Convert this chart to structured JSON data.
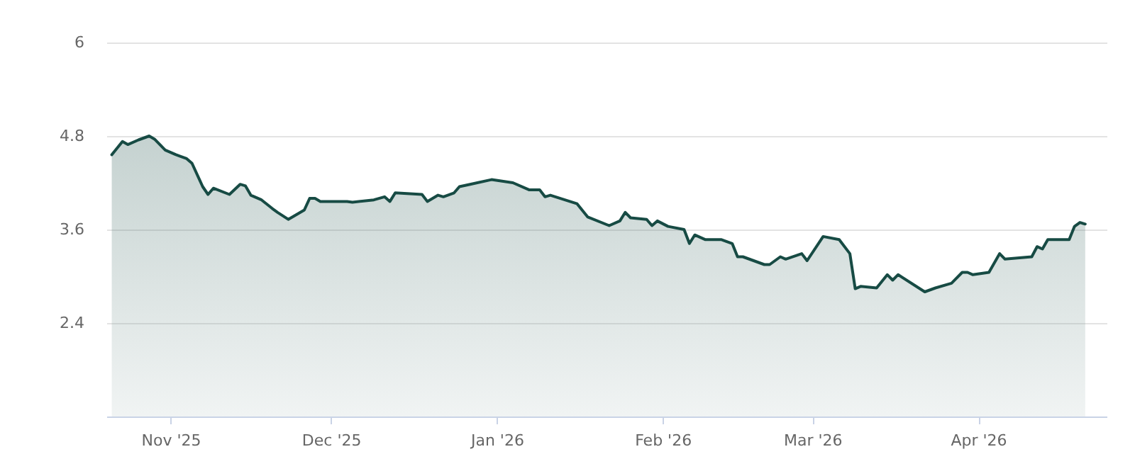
{
  "chart_data": {
    "type": "area",
    "x": [
      "2025-10-21",
      "2025-10-23",
      "2025-10-24",
      "2025-10-26",
      "2025-10-28",
      "2025-10-29",
      "2025-10-31",
      "2025-11-02",
      "2025-11-04",
      "2025-11-05",
      "2025-11-07",
      "2025-11-08",
      "2025-11-09",
      "2025-11-12",
      "2025-11-14",
      "2025-11-15",
      "2025-11-16",
      "2025-11-18",
      "2025-11-20",
      "2025-11-21",
      "2025-11-23",
      "2025-11-26",
      "2025-11-27",
      "2025-11-28",
      "2025-11-29",
      "2025-12-04",
      "2025-12-05",
      "2025-12-09",
      "2025-12-11",
      "2025-12-12",
      "2025-12-13",
      "2025-12-18",
      "2025-12-19",
      "2025-12-21",
      "2025-12-22",
      "2025-12-24",
      "2025-12-25",
      "2025-12-27",
      "2025-12-31",
      "2026-01-04",
      "2026-01-07",
      "2026-01-09",
      "2026-01-10",
      "2026-01-11",
      "2026-01-16",
      "2026-01-18",
      "2026-01-22",
      "2026-01-24",
      "2026-01-25",
      "2026-01-26",
      "2026-01-29",
      "2026-01-30",
      "2026-01-31",
      "2026-02-02",
      "2026-02-05",
      "2026-02-06",
      "2026-02-07",
      "2026-02-09",
      "2026-02-12",
      "2026-02-14",
      "2026-02-15",
      "2026-02-16",
      "2026-02-20",
      "2026-02-21",
      "2026-02-23",
      "2026-02-24",
      "2026-02-27",
      "2026-02-28",
      "2026-03-03",
      "2026-03-06",
      "2026-03-08",
      "2026-03-09",
      "2026-03-10",
      "2026-03-13",
      "2026-03-15",
      "2026-03-16",
      "2026-03-17",
      "2026-03-22",
      "2026-03-24",
      "2026-03-27",
      "2026-03-29",
      "2026-03-30",
      "2026-03-31",
      "2026-04-03",
      "2026-04-05",
      "2026-04-06",
      "2026-04-11",
      "2026-04-12",
      "2026-04-13",
      "2026-04-14",
      "2026-04-18",
      "2026-04-19",
      "2026-04-20",
      "2026-04-21"
    ],
    "series": [
      {
        "color": "#174b44",
        "values": [
          4.56,
          4.73,
          4.69,
          4.75,
          4.8,
          4.76,
          4.62,
          4.56,
          4.51,
          4.45,
          4.15,
          4.05,
          4.13,
          4.05,
          4.18,
          4.16,
          4.04,
          3.98,
          3.87,
          3.82,
          3.73,
          3.85,
          4.0,
          4.0,
          3.96,
          3.96,
          3.95,
          3.98,
          4.02,
          3.96,
          4.07,
          4.05,
          3.96,
          4.04,
          4.02,
          4.07,
          4.15,
          4.18,
          4.24,
          4.2,
          4.11,
          4.11,
          4.02,
          4.04,
          3.93,
          3.76,
          3.65,
          3.71,
          3.82,
          3.75,
          3.73,
          3.65,
          3.71,
          3.64,
          3.6,
          3.42,
          3.53,
          3.47,
          3.47,
          3.42,
          3.25,
          3.25,
          3.15,
          3.15,
          3.25,
          3.22,
          3.29,
          3.2,
          3.51,
          3.47,
          3.29,
          2.84,
          2.87,
          2.85,
          3.02,
          2.95,
          3.02,
          2.8,
          2.85,
          2.91,
          3.05,
          3.05,
          3.02,
          3.05,
          3.29,
          3.22,
          3.25,
          3.38,
          3.35,
          3.47,
          3.47,
          3.64,
          3.69,
          3.67
        ]
      }
    ],
    "xlim": [
      "2025-10-20",
      "2026-04-25"
    ],
    "xticks": [
      {
        "value": "2025-11-01",
        "label": "Nov '25"
      },
      {
        "value": "2025-12-01",
        "label": "Dec '25"
      },
      {
        "value": "2026-01-01",
        "label": "Jan '26"
      },
      {
        "value": "2026-02-01",
        "label": "Feb '26"
      },
      {
        "value": "2026-03-01",
        "label": "Mar '26"
      },
      {
        "value": "2026-04-01",
        "label": "Apr '26"
      }
    ],
    "ylim": [
      1.2,
      6
    ],
    "yticks": [
      2.4,
      3.6,
      4.8,
      6
    ],
    "grid": "y",
    "line_style": "solid"
  }
}
